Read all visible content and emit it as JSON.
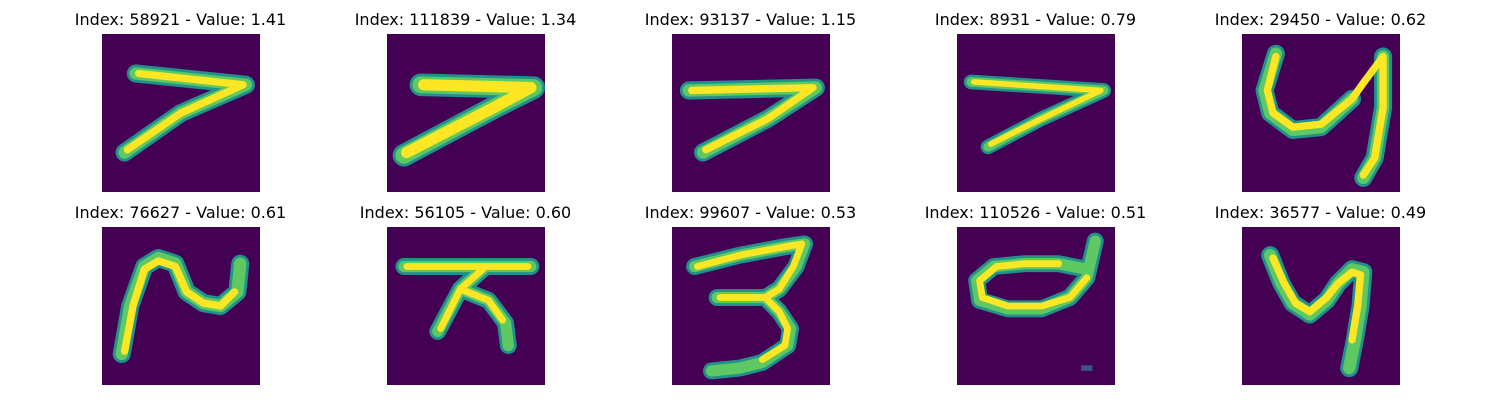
{
  "colors": {
    "background": "#440154",
    "low": "#21918c",
    "mid": "#5ec962",
    "high": "#fde725"
  },
  "panels": [
    {
      "title": "Index: 58921 - Value: 1.41",
      "glyph": "seven-a-icon"
    },
    {
      "title": "Index: 111839 - Value: 1.34",
      "glyph": "seven-b-icon"
    },
    {
      "title": "Index: 93137 - Value: 1.15",
      "glyph": "seven-c-icon"
    },
    {
      "title": "Index: 8931 - Value: 0.79",
      "glyph": "seven-d-icon"
    },
    {
      "title": "Index: 29450 - Value: 0.62",
      "glyph": "four-a-icon"
    },
    {
      "title": "Index: 76627 - Value: 0.61",
      "glyph": "two-icon"
    },
    {
      "title": "Index: 56105 - Value: 0.60",
      "glyph": "seven-crossed-icon"
    },
    {
      "title": "Index: 99607 - Value: 0.53",
      "glyph": "three-icon"
    },
    {
      "title": "Index: 110526 - Value: 0.51",
      "glyph": "zero-icon"
    },
    {
      "title": "Index: 36577 - Value: 0.49",
      "glyph": "four-b-icon"
    }
  ]
}
